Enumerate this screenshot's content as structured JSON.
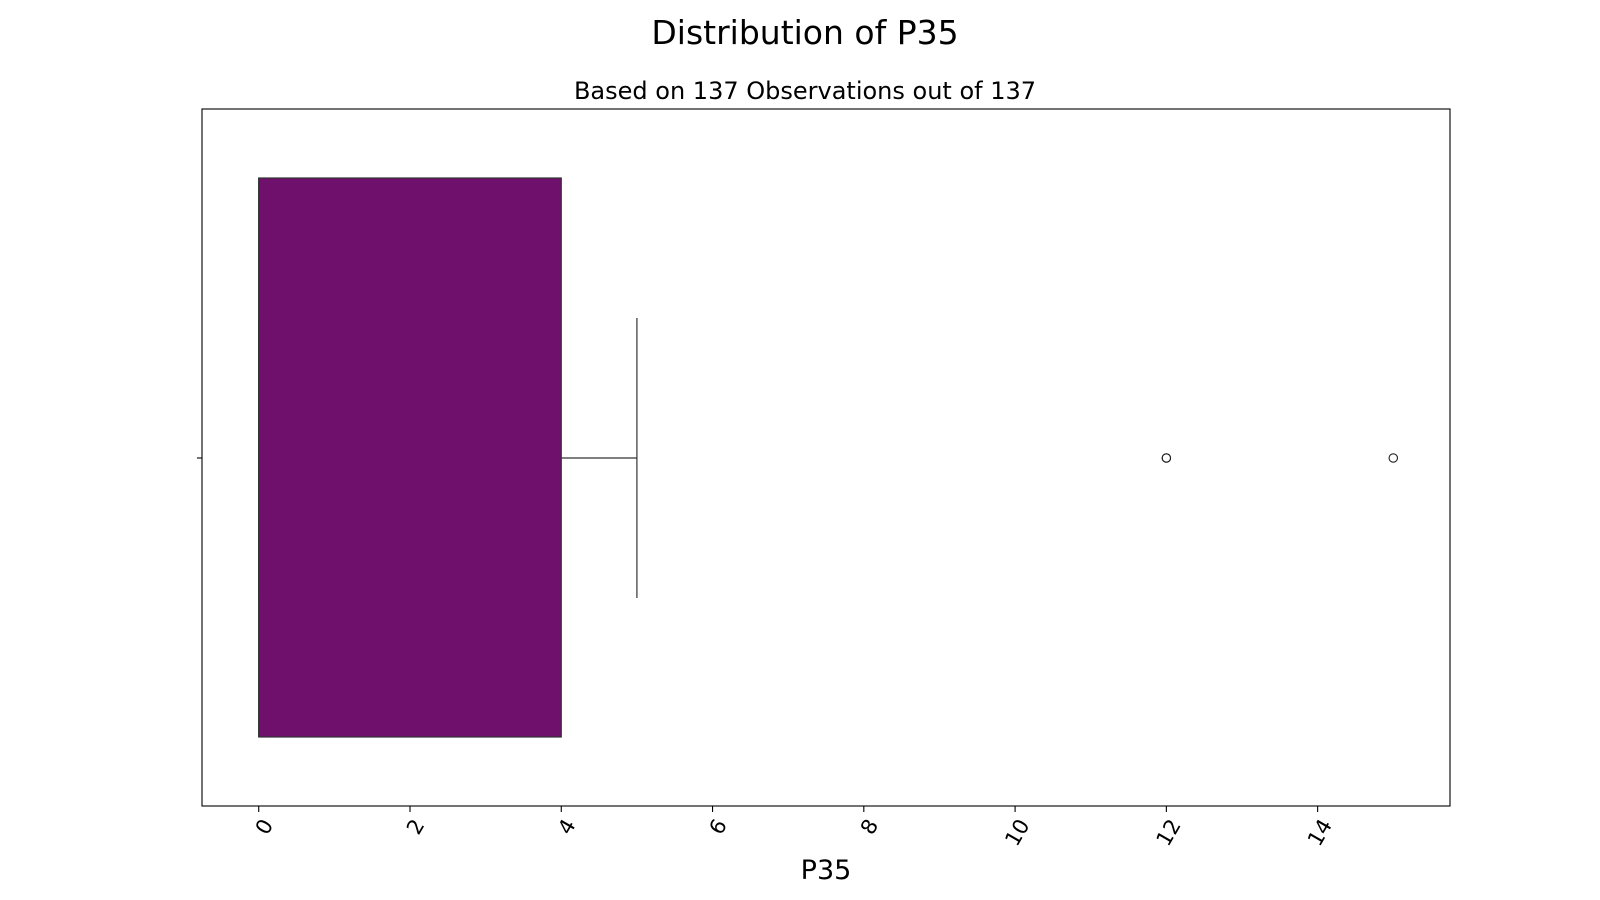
{
  "chart_data": {
    "type": "box",
    "title": "Distribution of P35",
    "subtitle": "Based on 137 Observations out of 137",
    "xlabel": "P35",
    "ylabel": "",
    "orientation": "horizontal",
    "xlim": [
      -0.75,
      15.75
    ],
    "xticks": [
      0,
      2,
      4,
      6,
      8,
      10,
      12,
      14
    ],
    "xtick_labels": [
      "0",
      "2",
      "4",
      "6",
      "8",
      "10",
      "12",
      "14"
    ],
    "tick_label_rotation": -60,
    "box": {
      "whisker_low": 0,
      "q1": 0,
      "median": 0,
      "q3": 4,
      "whisker_high": 5
    },
    "outliers": [
      12,
      12,
      15
    ],
    "box_color": "#6f106c",
    "grid": false,
    "legend": "none"
  }
}
